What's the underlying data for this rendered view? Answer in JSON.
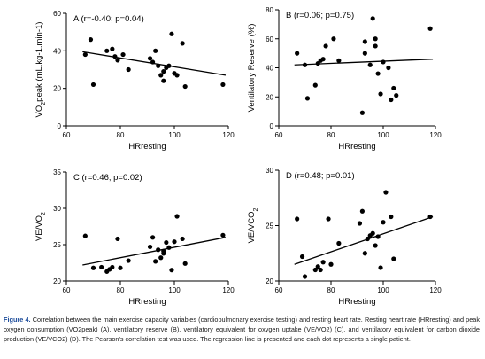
{
  "figure": {
    "caption_label": "Figure 4.",
    "caption_text": "Correlation between the main exercise capacity variables (cardiopulmonary exercise testing) and resting heart rate. Resting heart rate (HRresting) and peak oxygen consumption (VO2peak) (A), ventilatory reserve (B), ventilatory equivalent for oxygen uptake (VE/VO2) (C), and ventilatory equivalent for carbon dioxide production (VE/VCO2) (D). The Pearson's correlation test was used. The regression line is presented and each dot represents a single patient."
  },
  "chart_data": [
    {
      "type": "scatter",
      "panel_label": "A (r=-0.40; p=0.04)",
      "xlabel": "HRresting",
      "ylabel": "VO2peak (mL.kg-1.min-1)",
      "xlim": [
        60,
        120
      ],
      "ylim": [
        0,
        60
      ],
      "xticks": [
        60,
        80,
        100,
        120
      ],
      "yticks": [
        0,
        20,
        40,
        60
      ],
      "points": [
        {
          "x": 67,
          "y": 38
        },
        {
          "x": 69,
          "y": 46
        },
        {
          "x": 70,
          "y": 22
        },
        {
          "x": 75,
          "y": 40
        },
        {
          "x": 77,
          "y": 41
        },
        {
          "x": 78,
          "y": 37
        },
        {
          "x": 79,
          "y": 35
        },
        {
          "x": 81,
          "y": 38
        },
        {
          "x": 83,
          "y": 30
        },
        {
          "x": 91,
          "y": 36
        },
        {
          "x": 92,
          "y": 34
        },
        {
          "x": 93,
          "y": 40
        },
        {
          "x": 94,
          "y": 32
        },
        {
          "x": 95,
          "y": 27
        },
        {
          "x": 96,
          "y": 24
        },
        {
          "x": 96,
          "y": 29
        },
        {
          "x": 97,
          "y": 31
        },
        {
          "x": 98,
          "y": 32
        },
        {
          "x": 99,
          "y": 49
        },
        {
          "x": 100,
          "y": 28
        },
        {
          "x": 101,
          "y": 27
        },
        {
          "x": 103,
          "y": 44
        },
        {
          "x": 104,
          "y": 21
        },
        {
          "x": 118,
          "y": 22
        }
      ],
      "regression": {
        "x": [
          66,
          119
        ],
        "y": [
          39.5,
          27
        ]
      }
    },
    {
      "type": "scatter",
      "panel_label": "B (r=0.06; p=0.75)",
      "xlabel": "HRresting",
      "ylabel": "Ventilatory Reserve (%)",
      "xlim": [
        60,
        120
      ],
      "ylim": [
        0,
        80
      ],
      "xticks": [
        60,
        80,
        100,
        120
      ],
      "yticks": [
        0,
        20,
        40,
        60,
        80
      ],
      "points": [
        {
          "x": 67,
          "y": 50
        },
        {
          "x": 70,
          "y": 42
        },
        {
          "x": 71,
          "y": 19
        },
        {
          "x": 74,
          "y": 28
        },
        {
          "x": 75,
          "y": 43
        },
        {
          "x": 76,
          "y": 45
        },
        {
          "x": 77,
          "y": 46
        },
        {
          "x": 78,
          "y": 55
        },
        {
          "x": 81,
          "y": 60
        },
        {
          "x": 83,
          "y": 45
        },
        {
          "x": 92,
          "y": 9
        },
        {
          "x": 93,
          "y": 58
        },
        {
          "x": 93,
          "y": 50
        },
        {
          "x": 95,
          "y": 42
        },
        {
          "x": 96,
          "y": 74
        },
        {
          "x": 97,
          "y": 60
        },
        {
          "x": 97,
          "y": 55
        },
        {
          "x": 98,
          "y": 36
        },
        {
          "x": 99,
          "y": 22
        },
        {
          "x": 100,
          "y": 44
        },
        {
          "x": 102,
          "y": 40
        },
        {
          "x": 103,
          "y": 18
        },
        {
          "x": 104,
          "y": 26
        },
        {
          "x": 105,
          "y": 21
        },
        {
          "x": 118,
          "y": 67
        }
      ],
      "regression": {
        "x": [
          66,
          119
        ],
        "y": [
          42,
          46
        ]
      }
    },
    {
      "type": "scatter",
      "panel_label": "C (r=0.46; p=0.02)",
      "xlabel": "HRresting",
      "ylabel": "VE/VO2",
      "xlim": [
        60,
        120
      ],
      "ylim": [
        20,
        35
      ],
      "xticks": [
        60,
        80,
        100,
        120
      ],
      "yticks": [
        20,
        25,
        30,
        35
      ],
      "points": [
        {
          "x": 67,
          "y": 26.2
        },
        {
          "x": 70,
          "y": 21.8
        },
        {
          "x": 73,
          "y": 21.9
        },
        {
          "x": 75,
          "y": 21.3
        },
        {
          "x": 76,
          "y": 21.6
        },
        {
          "x": 77,
          "y": 21.9
        },
        {
          "x": 79,
          "y": 25.8
        },
        {
          "x": 80,
          "y": 21.8
        },
        {
          "x": 83,
          "y": 22.8
        },
        {
          "x": 91,
          "y": 24.7
        },
        {
          "x": 92,
          "y": 26.0
        },
        {
          "x": 93,
          "y": 22.7
        },
        {
          "x": 94,
          "y": 24.3
        },
        {
          "x": 95,
          "y": 23.2
        },
        {
          "x": 96,
          "y": 23.8
        },
        {
          "x": 96,
          "y": 24.1
        },
        {
          "x": 97,
          "y": 25.3
        },
        {
          "x": 98,
          "y": 24.6
        },
        {
          "x": 99,
          "y": 21.5
        },
        {
          "x": 100,
          "y": 25.4
        },
        {
          "x": 101,
          "y": 28.9
        },
        {
          "x": 103,
          "y": 25.8
        },
        {
          "x": 104,
          "y": 22.4
        },
        {
          "x": 118,
          "y": 26.3
        }
      ],
      "regression": {
        "x": [
          66,
          119
        ],
        "y": [
          22.2,
          26
        ]
      }
    },
    {
      "type": "scatter",
      "panel_label": "D (r=0.48; p=0.01)",
      "xlabel": "HRresting",
      "ylabel": "VE/VCO2",
      "xlim": [
        60,
        120
      ],
      "ylim": [
        20,
        30
      ],
      "xticks": [
        60,
        80,
        100,
        120
      ],
      "yticks": [
        20,
        25,
        30
      ],
      "points": [
        {
          "x": 67,
          "y": 25.6
        },
        {
          "x": 69,
          "y": 22.2
        },
        {
          "x": 70,
          "y": 20.4
        },
        {
          "x": 74,
          "y": 21.0
        },
        {
          "x": 75,
          "y": 21.3
        },
        {
          "x": 76,
          "y": 21.0
        },
        {
          "x": 77,
          "y": 21.7
        },
        {
          "x": 79,
          "y": 25.6
        },
        {
          "x": 80,
          "y": 21.5
        },
        {
          "x": 83,
          "y": 23.4
        },
        {
          "x": 91,
          "y": 25.2
        },
        {
          "x": 92,
          "y": 26.3
        },
        {
          "x": 93,
          "y": 22.5
        },
        {
          "x": 94,
          "y": 23.8
        },
        {
          "x": 95,
          "y": 24.1
        },
        {
          "x": 96,
          "y": 24.3
        },
        {
          "x": 97,
          "y": 23.2
        },
        {
          "x": 98,
          "y": 24.0
        },
        {
          "x": 99,
          "y": 21.2
        },
        {
          "x": 100,
          "y": 25.3
        },
        {
          "x": 101,
          "y": 28.0
        },
        {
          "x": 103,
          "y": 25.8
        },
        {
          "x": 104,
          "y": 22.0
        },
        {
          "x": 118,
          "y": 25.8
        }
      ],
      "regression": {
        "x": [
          66,
          119
        ],
        "y": [
          21.5,
          25.8
        ]
      }
    }
  ]
}
